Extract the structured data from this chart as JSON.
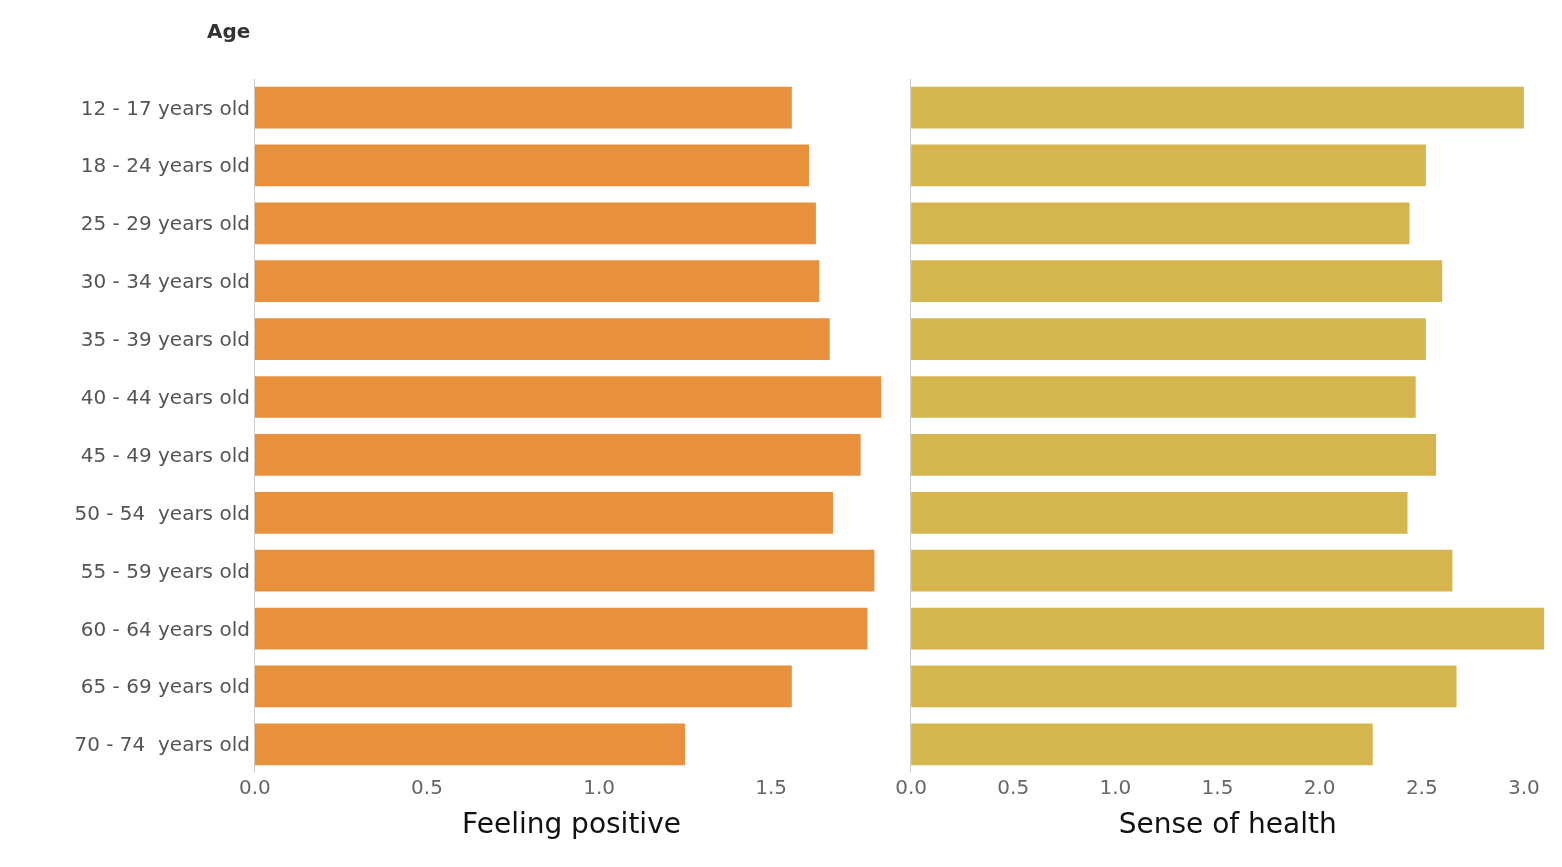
{
  "chart_data": [
    {
      "type": "bar",
      "orientation": "horizontal",
      "ylabel": "Age",
      "xlabel": "Feeling positive",
      "categories": [
        "12 - 17 years old",
        "18 - 24 years old",
        "25 - 29 years old",
        "30 - 34 years old",
        "35 - 39 years old",
        "40 - 44 years old",
        "45 - 49 years old",
        "50 - 54  years old",
        "55 - 59 years old",
        "60 - 64 years old",
        "65 - 69 years old",
        "70 - 74  years old"
      ],
      "values": [
        1.56,
        1.61,
        1.63,
        1.64,
        1.67,
        1.82,
        1.76,
        1.68,
        1.8,
        1.78,
        1.56,
        1.25
      ],
      "color": "#e8913c",
      "xlim": [
        0,
        1.84
      ],
      "xticks": [
        {
          "value": 0,
          "label": "0.0"
        },
        0.5,
        {
          "value": 1,
          "label": "1.0"
        },
        1.5
      ]
    },
    {
      "type": "bar",
      "orientation": "horizontal",
      "xlabel": "Sense of health",
      "categories": [
        null,
        null,
        null,
        null,
        null,
        null,
        null,
        null,
        null,
        null,
        null,
        null
      ],
      "values": [
        3.0,
        2.52,
        2.44,
        2.6,
        2.52,
        2.47,
        2.57,
        2.43,
        2.65,
        3.1,
        2.67,
        2.26
      ],
      "color": "#d4b54e",
      "xlim": [
        0,
        3.1
      ],
      "xticks": [
        {
          "value": 0,
          "label": "0.0"
        },
        0.5,
        {
          "value": 1,
          "label": "1.0"
        },
        1.5,
        {
          "value": 2,
          "label": "2.0"
        },
        2.5,
        {
          "value": 3,
          "label": "3.0"
        }
      ]
    }
  ]
}
